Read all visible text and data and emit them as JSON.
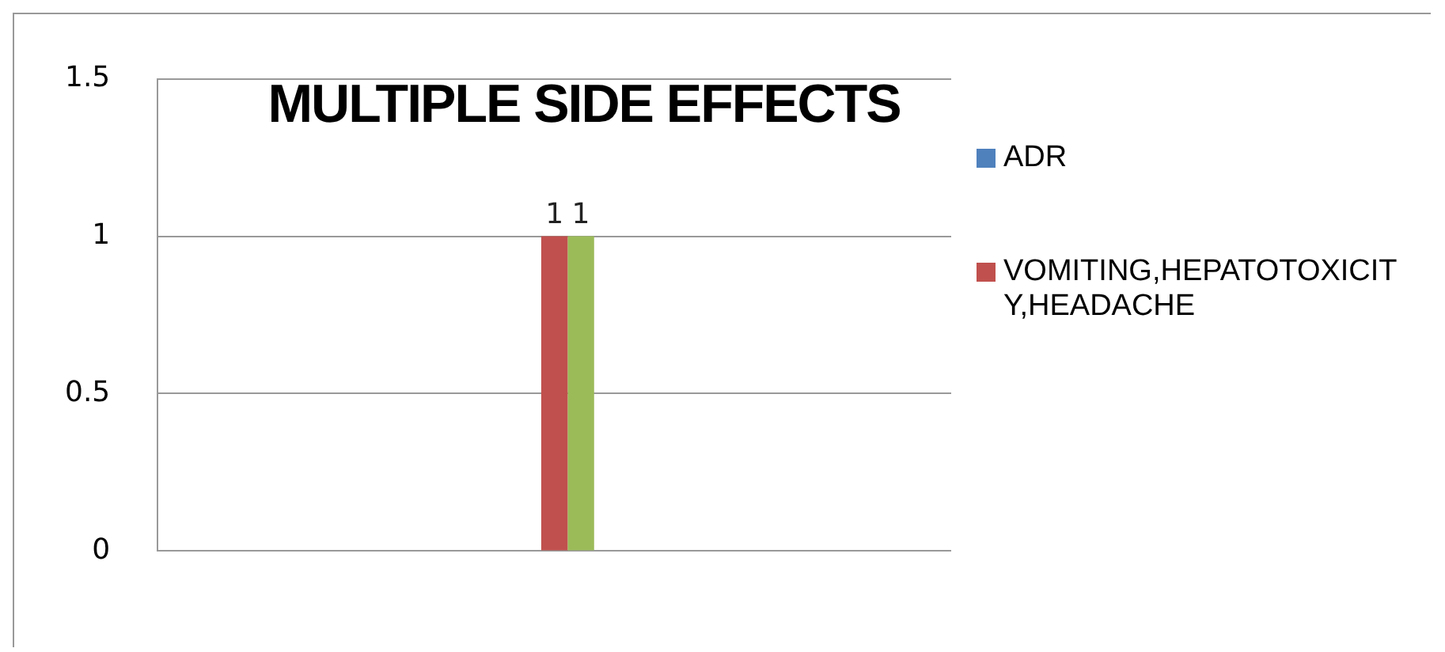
{
  "chart_data": {
    "type": "bar",
    "title": "MULTIPLE SIDE EFFECTS",
    "categories": [
      null
    ],
    "series": [
      {
        "name": "ADR",
        "color": "#4f81bd",
        "values": [
          null
        ]
      },
      {
        "name": "VOMITING,HEPATOTOXICITY,HEADACHE",
        "color": "#c0504d",
        "values": [
          1
        ]
      },
      {
        "color": "#9bbb59",
        "values": [
          1
        ]
      }
    ],
    "ylim": [
      0,
      1.5
    ],
    "yticks": [
      0,
      0.5,
      1,
      1.5
    ],
    "grid": "y",
    "legend": "right",
    "data_labels": true
  }
}
